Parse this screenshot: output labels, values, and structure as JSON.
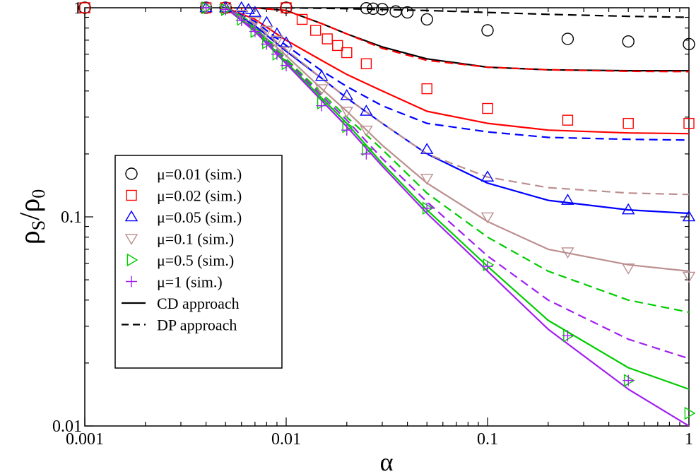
{
  "chart_data": {
    "type": "scatter",
    "x_scale": "log",
    "y_scale": "log",
    "xlim": [
      0.001,
      1
    ],
    "ylim": [
      0.01,
      1
    ],
    "x_ticks": [
      "0.001",
      "0.01",
      "0.1",
      "1"
    ],
    "y_ticks": [
      "0.01",
      "0.1",
      "1"
    ],
    "xlabel": "α",
    "ylabel": {
      "main": "ρ",
      "sub_s": "S",
      "slash": "/",
      "main2": "ρ",
      "sub_0": "0"
    },
    "legend_position": "middle-left",
    "series": [
      {
        "name": "μ=0.01 (sim.)",
        "marker": "circle",
        "color": "#000000",
        "x": [
          0.001,
          0.004,
          0.005,
          0.01,
          0.025,
          0.027,
          0.03,
          0.035,
          0.04,
          0.05,
          0.1,
          0.25,
          0.5,
          1
        ],
        "y": [
          1,
          1,
          1,
          1,
          0.995,
          0.99,
          0.985,
          0.96,
          0.95,
          0.88,
          0.78,
          0.71,
          0.69,
          0.67
        ]
      },
      {
        "name": "μ=0.02 (sim.)",
        "marker": "square",
        "color": "#ff0000",
        "x": [
          0.001,
          0.004,
          0.005,
          0.01,
          0.012,
          0.014,
          0.016,
          0.018,
          0.02,
          0.025,
          0.05,
          0.1,
          0.25,
          0.5,
          1
        ],
        "y": [
          1,
          1,
          1,
          1,
          0.88,
          0.78,
          0.71,
          0.66,
          0.61,
          0.54,
          0.41,
          0.33,
          0.29,
          0.28,
          0.28
        ]
      },
      {
        "name": "μ=0.05 (sim.)",
        "marker": "triangle-up",
        "color": "#0000ff",
        "x": [
          0.004,
          0.005,
          0.006,
          0.0065,
          0.007,
          0.008,
          0.009,
          0.01,
          0.015,
          0.02,
          0.025,
          0.05,
          0.1,
          0.25,
          0.5,
          1
        ],
        "y": [
          1,
          1,
          1,
          0.98,
          0.95,
          0.85,
          0.75,
          0.68,
          0.47,
          0.38,
          0.32,
          0.21,
          0.155,
          0.12,
          0.108,
          0.1
        ]
      },
      {
        "name": "μ=0.1 (sim.)",
        "marker": "triangle-down",
        "color": "#bc8f8f",
        "x": [
          0.004,
          0.005,
          0.006,
          0.007,
          0.008,
          0.009,
          0.01,
          0.015,
          0.02,
          0.025,
          0.05,
          0.1,
          0.25,
          0.5,
          1
        ],
        "y": [
          1,
          0.99,
          0.93,
          0.86,
          0.78,
          0.7,
          0.62,
          0.41,
          0.32,
          0.26,
          0.153,
          0.1,
          0.068,
          0.057,
          0.052
        ]
      },
      {
        "name": "μ=0.5 (sim.)",
        "marker": "triangle-right",
        "color": "#00cc00",
        "x": [
          0.004,
          0.005,
          0.006,
          0.007,
          0.008,
          0.009,
          0.01,
          0.015,
          0.02,
          0.025,
          0.05,
          0.1,
          0.25,
          0.5,
          1
        ],
        "y": [
          1,
          0.98,
          0.88,
          0.77,
          0.68,
          0.6,
          0.54,
          0.35,
          0.27,
          0.21,
          0.11,
          0.059,
          0.027,
          0.0165,
          0.0115
        ]
      },
      {
        "name": "μ=1 (sim.)",
        "marker": "plus",
        "color": "#a020f0",
        "x": [
          0.004,
          0.005,
          0.006,
          0.007,
          0.008,
          0.009,
          0.01,
          0.015,
          0.02,
          0.025,
          0.05,
          0.1,
          0.25,
          0.5
        ],
        "y": [
          1,
          0.98,
          0.87,
          0.77,
          0.67,
          0.6,
          0.53,
          0.34,
          0.26,
          0.2,
          0.11,
          0.058,
          0.027,
          0.0165
        ]
      }
    ],
    "curves": [
      {
        "approach": "CD",
        "style": "solid",
        "color": "#000000",
        "x": [
          0.005,
          0.007,
          0.01,
          0.015,
          0.02,
          0.03,
          0.05,
          0.1,
          0.2,
          0.5,
          1
        ],
        "y": [
          1,
          1,
          0.97,
          0.84,
          0.75,
          0.65,
          0.57,
          0.52,
          0.505,
          0.5,
          0.5
        ]
      },
      {
        "approach": "CD",
        "style": "solid",
        "color": "#ff0000",
        "x": [
          0.005,
          0.007,
          0.01,
          0.015,
          0.02,
          0.03,
          0.05,
          0.1,
          0.2,
          0.5,
          1
        ],
        "y": [
          1,
          0.88,
          0.7,
          0.56,
          0.48,
          0.4,
          0.32,
          0.28,
          0.26,
          0.252,
          0.25
        ]
      },
      {
        "approach": "CD",
        "style": "solid",
        "color": "#0000ff",
        "x": [
          0.005,
          0.007,
          0.01,
          0.015,
          0.02,
          0.03,
          0.05,
          0.1,
          0.2,
          0.5,
          1
        ],
        "y": [
          1,
          0.82,
          0.62,
          0.46,
          0.37,
          0.28,
          0.2,
          0.145,
          0.12,
          0.108,
          0.104
        ]
      },
      {
        "approach": "CD",
        "style": "solid",
        "color": "#bc8f8f",
        "x": [
          0.005,
          0.007,
          0.01,
          0.015,
          0.02,
          0.03,
          0.05,
          0.1,
          0.2,
          0.5,
          1
        ],
        "y": [
          1,
          0.8,
          0.59,
          0.41,
          0.32,
          0.22,
          0.145,
          0.095,
          0.07,
          0.059,
          0.055
        ]
      },
      {
        "approach": "CD",
        "style": "solid",
        "color": "#00cc00",
        "x": [
          0.005,
          0.007,
          0.01,
          0.015,
          0.02,
          0.03,
          0.05,
          0.1,
          0.2,
          0.5,
          1
        ],
        "y": [
          1,
          0.78,
          0.55,
          0.37,
          0.28,
          0.18,
          0.108,
          0.058,
          0.032,
          0.019,
          0.015
        ]
      },
      {
        "approach": "CD",
        "style": "solid",
        "color": "#a020f0",
        "x": [
          0.005,
          0.007,
          0.01,
          0.015,
          0.02,
          0.03,
          0.05,
          0.1,
          0.2,
          0.5,
          1
        ],
        "y": [
          1,
          0.77,
          0.54,
          0.36,
          0.27,
          0.175,
          0.104,
          0.055,
          0.029,
          0.015,
          0.01
        ]
      },
      {
        "approach": "DP",
        "style": "dashed",
        "color": "#000000",
        "x": [
          0.01,
          0.02,
          0.05,
          0.1,
          0.2,
          0.5,
          1
        ],
        "y": [
          1,
          0.99,
          0.97,
          0.95,
          0.93,
          0.91,
          0.9
        ]
      },
      {
        "approach": "DP",
        "style": "dashed",
        "color": "#ff0000",
        "x": [
          0.005,
          0.007,
          0.01,
          0.015,
          0.02,
          0.03,
          0.05,
          0.1,
          0.2,
          0.5,
          1
        ],
        "y": [
          1,
          1,
          0.97,
          0.84,
          0.75,
          0.64,
          0.56,
          0.52,
          0.505,
          0.497,
          0.495
        ]
      },
      {
        "approach": "DP",
        "style": "dashed",
        "color": "#0000ff",
        "x": [
          0.005,
          0.007,
          0.01,
          0.015,
          0.02,
          0.03,
          0.05,
          0.1,
          0.2,
          0.5,
          1
        ],
        "y": [
          1,
          0.86,
          0.66,
          0.5,
          0.42,
          0.34,
          0.28,
          0.255,
          0.24,
          0.235,
          0.233
        ]
      },
      {
        "approach": "DP",
        "style": "dashed",
        "color": "#bc8f8f",
        "x": [
          0.005,
          0.007,
          0.01,
          0.015,
          0.02,
          0.03,
          0.05,
          0.1,
          0.2,
          0.5,
          1
        ],
        "y": [
          1,
          0.84,
          0.63,
          0.46,
          0.37,
          0.28,
          0.2,
          0.155,
          0.138,
          0.13,
          0.128
        ]
      },
      {
        "approach": "DP",
        "style": "dashed",
        "color": "#00cc00",
        "x": [
          0.005,
          0.007,
          0.01,
          0.015,
          0.02,
          0.03,
          0.05,
          0.1,
          0.2,
          0.5,
          1
        ],
        "y": [
          1,
          0.8,
          0.57,
          0.39,
          0.3,
          0.21,
          0.13,
          0.08,
          0.055,
          0.04,
          0.035
        ]
      },
      {
        "approach": "DP",
        "style": "dashed",
        "color": "#a020f0",
        "x": [
          0.005,
          0.007,
          0.01,
          0.015,
          0.02,
          0.03,
          0.05,
          0.1,
          0.2,
          0.5,
          1
        ],
        "y": [
          1,
          0.79,
          0.56,
          0.38,
          0.29,
          0.19,
          0.118,
          0.065,
          0.04,
          0.026,
          0.021
        ]
      }
    ],
    "legend_lines": [
      {
        "label": "CD approach",
        "style": "solid"
      },
      {
        "label": "DP approach",
        "style": "dashed"
      }
    ]
  }
}
